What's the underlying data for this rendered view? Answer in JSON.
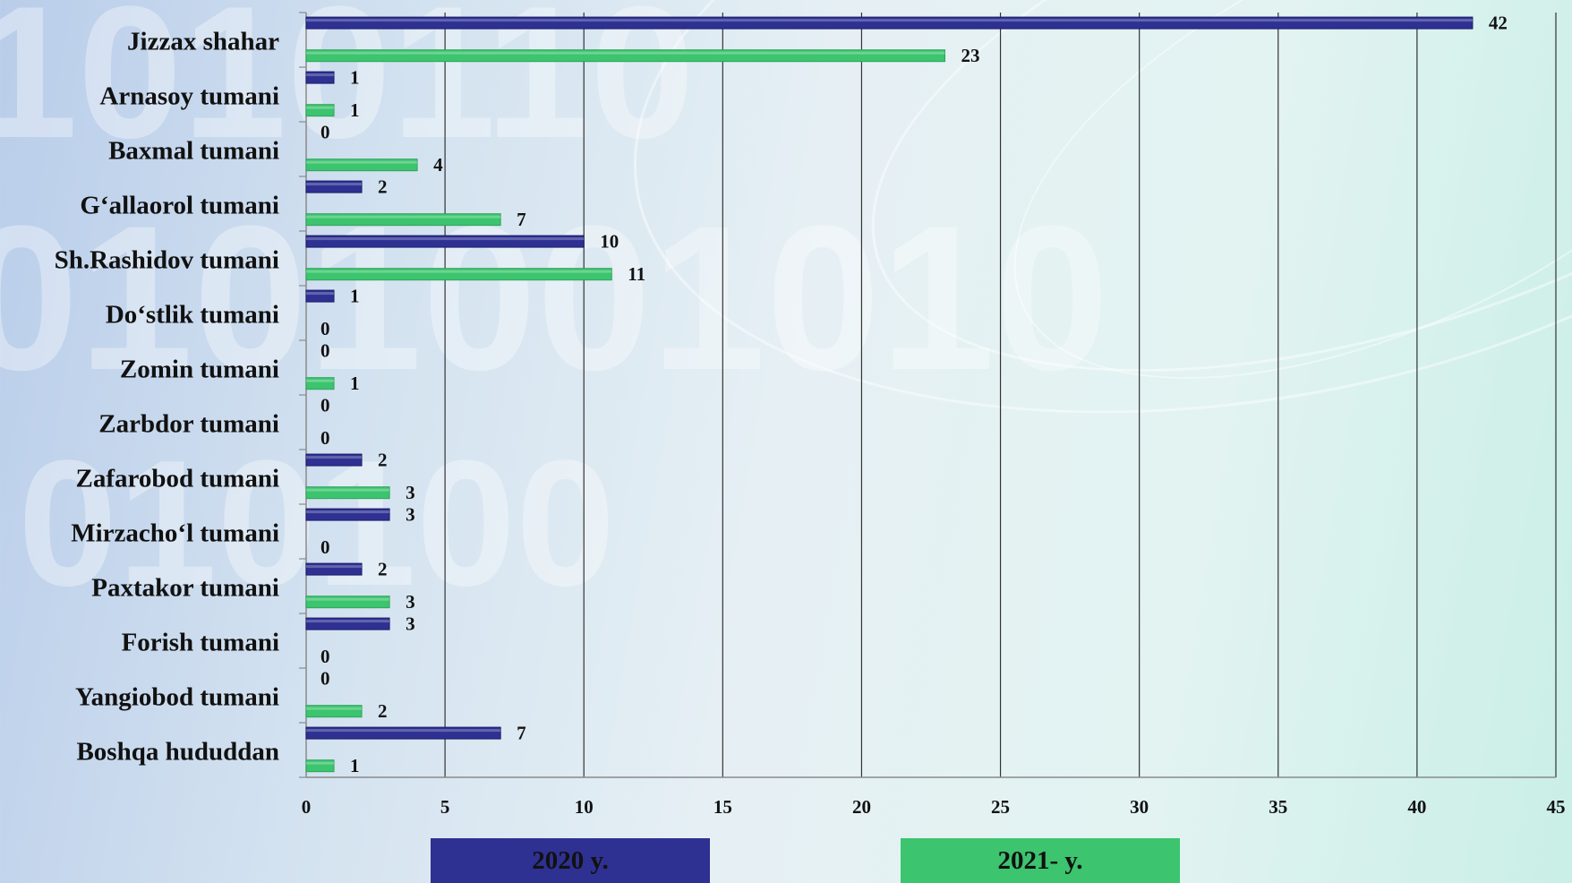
{
  "chart_data": {
    "type": "bar",
    "orientation": "horizontal",
    "categories": [
      "Jizzax shahar",
      "Arnasoy tumani",
      "Baxmal tumani",
      "G‘allaorol tumani",
      "Sh.Rashidov tumani",
      "Do‘stlik tumani",
      "Zomin tumani",
      "Zarbdor tumani",
      "Zafarobod tumani",
      "Mirzacho‘l tumani",
      "Paxtakor tumani",
      "Forish tumani",
      "Yangiobod tumani",
      "Boshqa hududdan"
    ],
    "series": [
      {
        "name": "2020 y.",
        "color": "#2e3192",
        "values": [
          42,
          1,
          0,
          2,
          10,
          1,
          0,
          0,
          2,
          3,
          2,
          3,
          0,
          7
        ]
      },
      {
        "name": "2021- y.",
        "color": "#3cc46e",
        "values": [
          23,
          1,
          4,
          7,
          11,
          0,
          1,
          0,
          3,
          0,
          3,
          0,
          2,
          1
        ]
      }
    ],
    "xlim": [
      0,
      45
    ],
    "xticks": [
      "0",
      "5",
      "10",
      "15",
      "20",
      "25",
      "30",
      "35",
      "40",
      "45"
    ],
    "grid": true,
    "legend_position": "bottom",
    "data_labels": true
  },
  "legend": {
    "label_2020": "2020 y.",
    "label_2021": "2021- y."
  }
}
